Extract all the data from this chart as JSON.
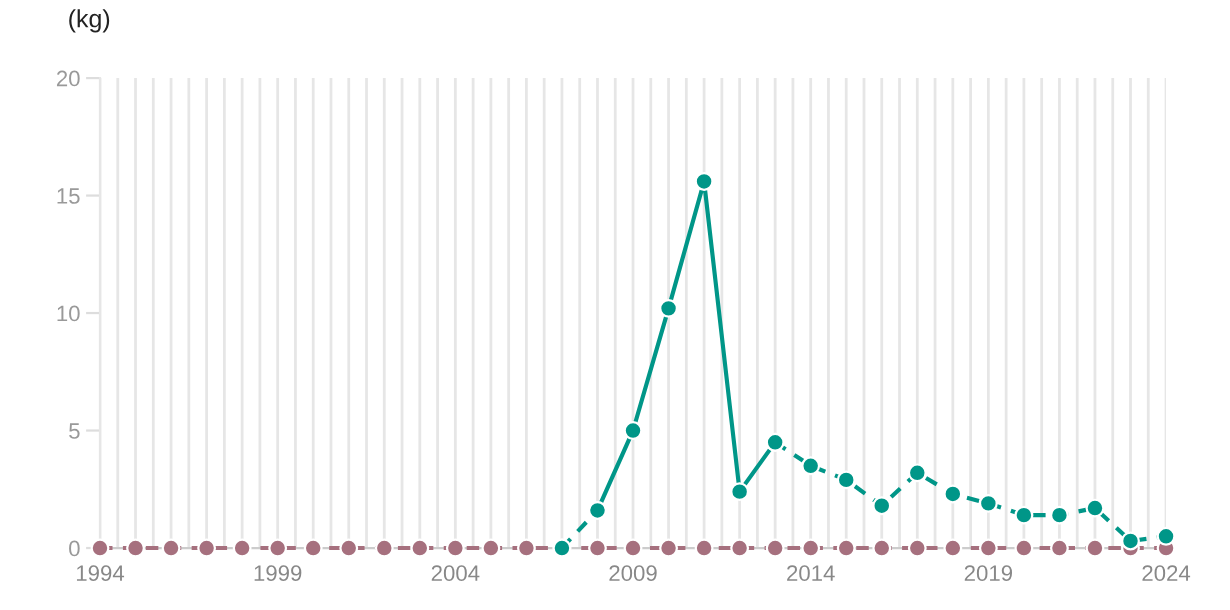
{
  "chart_data": {
    "type": "line",
    "ylabel": "(kg)",
    "x": [
      1994,
      1995,
      1996,
      1997,
      1998,
      1999,
      2000,
      2001,
      2002,
      2003,
      2004,
      2005,
      2006,
      2007,
      2008,
      2009,
      2010,
      2011,
      2012,
      2013,
      2014,
      2015,
      2016,
      2017,
      2018,
      2019,
      2020,
      2021,
      2022,
      2023,
      2024
    ],
    "series": [
      {
        "color": "#009688",
        "line_style": "dashed",
        "values": [
          null,
          null,
          null,
          null,
          null,
          null,
          null,
          null,
          null,
          null,
          null,
          null,
          null,
          0,
          1.6,
          null,
          null,
          null,
          null,
          4.5,
          3.5,
          2.9,
          1.8,
          3.2,
          2.3,
          1.9,
          1.4,
          1.4,
          1.7,
          0.3,
          0.5
        ]
      },
      {
        "color": "#009688",
        "line_style": "solid",
        "values": [
          null,
          null,
          null,
          null,
          null,
          null,
          null,
          null,
          null,
          null,
          null,
          null,
          null,
          null,
          1.6,
          5.0,
          10.2,
          15.6,
          2.4,
          4.5,
          null,
          null,
          null,
          null,
          null,
          null,
          null,
          null,
          null,
          null,
          null
        ]
      },
      {
        "color": "#a6707e",
        "line_style": "dashed",
        "values": [
          0,
          0,
          0,
          0,
          0,
          0,
          0,
          0,
          0,
          0,
          0,
          0,
          0,
          0,
          0,
          0,
          0,
          0,
          0,
          0,
          0,
          0,
          0,
          0,
          0,
          0,
          0,
          0,
          0,
          0,
          0
        ]
      }
    ],
    "marker": "circle",
    "xlim": [
      1994,
      2024
    ],
    "xticks": [
      1994,
      {
        "value": 1994.5,
        "label": null
      },
      {
        "value": 1995,
        "label": null
      },
      {
        "value": 1995.5,
        "label": null
      },
      {
        "value": 1996,
        "label": null
      },
      {
        "value": 1996.5,
        "label": null
      },
      {
        "value": 1997,
        "label": null
      },
      {
        "value": 1997.5,
        "label": null
      },
      {
        "value": 1998,
        "label": null
      },
      {
        "value": 1998.5,
        "label": null
      },
      1999,
      {
        "value": 1999.5,
        "label": null
      },
      {
        "value": 2000,
        "label": null
      },
      {
        "value": 2000.5,
        "label": null
      },
      {
        "value": 2001,
        "label": null
      },
      {
        "value": 2001.5,
        "label": null
      },
      {
        "value": 2002,
        "label": null
      },
      {
        "value": 2002.5,
        "label": null
      },
      {
        "value": 2003,
        "label": null
      },
      {
        "value": 2003.5,
        "label": null
      },
      2004,
      {
        "value": 2004.5,
        "label": null
      },
      {
        "value": 2005,
        "label": null
      },
      {
        "value": 2005.5,
        "label": null
      },
      {
        "value": 2006,
        "label": null
      },
      {
        "value": 2006.5,
        "label": null
      },
      {
        "value": 2007,
        "label": null
      },
      {
        "value": 2007.5,
        "label": null
      },
      {
        "value": 2008,
        "label": null
      },
      {
        "value": 2008.5,
        "label": null
      },
      2009,
      {
        "value": 2009.5,
        "label": null
      },
      {
        "value": 2010,
        "label": null
      },
      {
        "value": 2010.5,
        "label": null
      },
      {
        "value": 2011,
        "label": null
      },
      {
        "value": 2011.5,
        "label": null
      },
      {
        "value": 2012,
        "label": null
      },
      {
        "value": 2012.5,
        "label": null
      },
      {
        "value": 2013,
        "label": null
      },
      {
        "value": 2013.5,
        "label": null
      },
      2014,
      {
        "value": 2014.5,
        "label": null
      },
      {
        "value": 2015,
        "label": null
      },
      {
        "value": 2015.5,
        "label": null
      },
      {
        "value": 2016,
        "label": null
      },
      {
        "value": 2016.5,
        "label": null
      },
      {
        "value": 2017,
        "label": null
      },
      {
        "value": 2017.5,
        "label": null
      },
      {
        "value": 2018,
        "label": null
      },
      {
        "value": 2018.5,
        "label": null
      },
      2019,
      {
        "value": 2019.5,
        "label": null
      },
      {
        "value": 2020,
        "label": null
      },
      {
        "value": 2020.5,
        "label": null
      },
      {
        "value": 2021,
        "label": null
      },
      {
        "value": 2021.5,
        "label": null
      },
      {
        "value": 2022,
        "label": null
      },
      {
        "value": 2022.5,
        "label": null
      },
      {
        "value": 2023,
        "label": null
      },
      {
        "value": 2023.5,
        "label": null
      },
      2024
    ],
    "ylim": [
      0,
      20
    ],
    "yticks": [
      0,
      5,
      10,
      15,
      20
    ],
    "grid": "x"
  }
}
